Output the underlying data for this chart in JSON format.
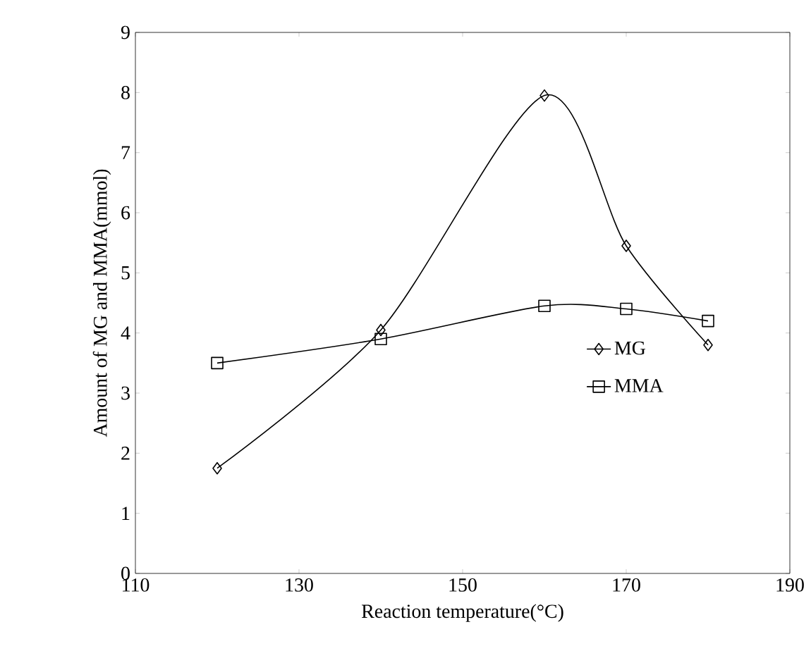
{
  "chart_data": {
    "type": "line",
    "xlabel": "Reaction temperature(°C)",
    "ylabel": "Amount of MG and MMA(mmol)",
    "xlim": [
      110,
      190
    ],
    "xticks": [
      110,
      130,
      150,
      170,
      190
    ],
    "ylim": [
      0,
      9
    ],
    "yticks": [
      0,
      1,
      2,
      3,
      4,
      5,
      6,
      7,
      8,
      9
    ],
    "x": [
      120,
      140,
      160,
      170,
      180
    ],
    "grid": false,
    "legend": "center",
    "line_style": "solid",
    "series": [
      {
        "name": "MG",
        "color": "#000000",
        "marker": "diamond",
        "values": [
          1.75,
          4.05,
          7.95,
          5.45,
          3.8
        ]
      },
      {
        "name": "MMA",
        "color": "#000000",
        "marker": "square",
        "values": [
          3.5,
          3.9,
          4.45,
          4.4,
          4.2
        ]
      }
    ]
  }
}
